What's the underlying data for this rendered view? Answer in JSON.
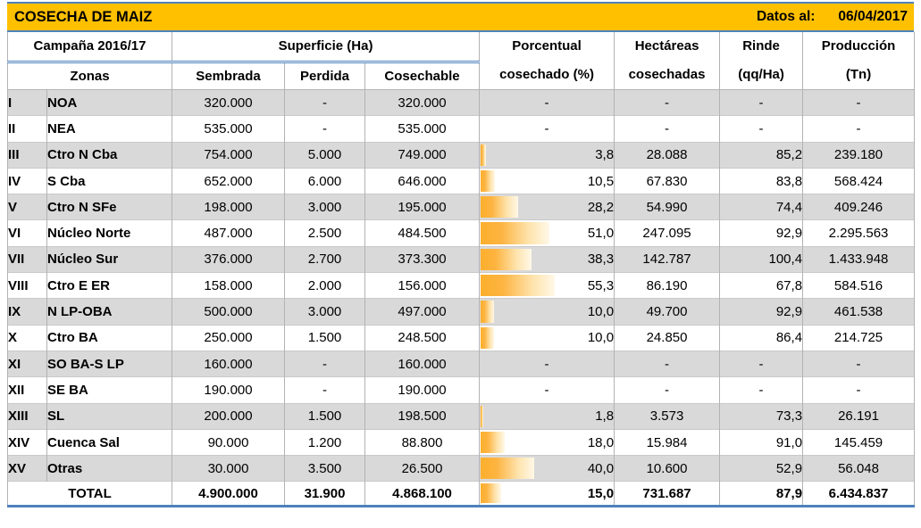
{
  "chart_data": {
    "type": "table",
    "title": "COSECHA DE MAIZ",
    "as_of_label": "Datos al:",
    "as_of_date": "06/04/2017",
    "header_groups": {
      "campania": "Campaña 2016/17",
      "superficie": "Superficie (Ha)"
    },
    "columns": {
      "zonas": "Zonas",
      "sembrada": "Sembrada",
      "perdida": "Perdida",
      "cosechable": "Cosechable",
      "porcentual_l1": "Porcentual",
      "porcentual_l2": "cosechado (%)",
      "hectareas_l1": "Hectáreas",
      "hectareas_l2": "cosechadas",
      "rinde_l1": "Rinde",
      "rinde_l2": "(qq/Ha)",
      "produccion_l1": "Producción",
      "produccion_l2": "(Tn)"
    },
    "databar": {
      "min": 0,
      "max": 100
    },
    "rows": [
      {
        "id": "I",
        "zone": "NOA",
        "sembrada": "320.000",
        "perdida": "-",
        "cosechable": "320.000",
        "pct": null,
        "pct_text": "-",
        "hectareas": "-",
        "rinde": "-",
        "produccion": "-"
      },
      {
        "id": "II",
        "zone": "NEA",
        "sembrada": "535.000",
        "perdida": "-",
        "cosechable": "535.000",
        "pct": null,
        "pct_text": "-",
        "hectareas": "-",
        "rinde": "-",
        "produccion": "-"
      },
      {
        "id": "III",
        "zone": "Ctro N Cba",
        "sembrada": "754.000",
        "perdida": "5.000",
        "cosechable": "749.000",
        "pct": 3.8,
        "pct_text": "3,8",
        "hectareas": "28.088",
        "rinde": "85,2",
        "produccion": "239.180"
      },
      {
        "id": "IV",
        "zone": "S Cba",
        "sembrada": "652.000",
        "perdida": "6.000",
        "cosechable": "646.000",
        "pct": 10.5,
        "pct_text": "10,5",
        "hectareas": "67.830",
        "rinde": "83,8",
        "produccion": "568.424"
      },
      {
        "id": "V",
        "zone": "Ctro N SFe",
        "sembrada": "198.000",
        "perdida": "3.000",
        "cosechable": "195.000",
        "pct": 28.2,
        "pct_text": "28,2",
        "hectareas": "54.990",
        "rinde": "74,4",
        "produccion": "409.246"
      },
      {
        "id": "VI",
        "zone": "Núcleo Norte",
        "sembrada": "487.000",
        "perdida": "2.500",
        "cosechable": "484.500",
        "pct": 51.0,
        "pct_text": "51,0",
        "hectareas": "247.095",
        "rinde": "92,9",
        "produccion": "2.295.563"
      },
      {
        "id": "VII",
        "zone": "Núcleo Sur",
        "sembrada": "376.000",
        "perdida": "2.700",
        "cosechable": "373.300",
        "pct": 38.3,
        "pct_text": "38,3",
        "hectareas": "142.787",
        "rinde": "100,4",
        "produccion": "1.433.948"
      },
      {
        "id": "VIII",
        "zone": "Ctro E ER",
        "sembrada": "158.000",
        "perdida": "2.000",
        "cosechable": "156.000",
        "pct": 55.3,
        "pct_text": "55,3",
        "hectareas": "86.190",
        "rinde": "67,8",
        "produccion": "584.516"
      },
      {
        "id": "IX",
        "zone": "N LP-OBA",
        "sembrada": "500.000",
        "perdida": "3.000",
        "cosechable": "497.000",
        "pct": 10.0,
        "pct_text": "10,0",
        "hectareas": "49.700",
        "rinde": "92,9",
        "produccion": "461.538"
      },
      {
        "id": "X",
        "zone": "Ctro BA",
        "sembrada": "250.000",
        "perdida": "1.500",
        "cosechable": "248.500",
        "pct": 10.0,
        "pct_text": "10,0",
        "hectareas": "24.850",
        "rinde": "86,4",
        "produccion": "214.725"
      },
      {
        "id": "XI",
        "zone": "SO BA-S LP",
        "sembrada": "160.000",
        "perdida": "-",
        "cosechable": "160.000",
        "pct": null,
        "pct_text": "-",
        "hectareas": "-",
        "rinde": "-",
        "produccion": "-"
      },
      {
        "id": "XII",
        "zone": "SE BA",
        "sembrada": "190.000",
        "perdida": "-",
        "cosechable": "190.000",
        "pct": null,
        "pct_text": "-",
        "hectareas": "-",
        "rinde": "-",
        "produccion": "-"
      },
      {
        "id": "XIII",
        "zone": "SL",
        "sembrada": "200.000",
        "perdida": "1.500",
        "cosechable": "198.500",
        "pct": 1.8,
        "pct_text": "1,8",
        "hectareas": "3.573",
        "rinde": "73,3",
        "produccion": "26.191"
      },
      {
        "id": "XIV",
        "zone": "Cuenca Sal",
        "sembrada": "90.000",
        "perdida": "1.200",
        "cosechable": "88.800",
        "pct": 18.0,
        "pct_text": "18,0",
        "hectareas": "15.984",
        "rinde": "91,0",
        "produccion": "145.459"
      },
      {
        "id": "XV",
        "zone": "Otras",
        "sembrada": "30.000",
        "perdida": "3.500",
        "cosechable": "26.500",
        "pct": 40.0,
        "pct_text": "40,0",
        "hectareas": "10.600",
        "rinde": "52,9",
        "produccion": "56.048"
      }
    ],
    "total": {
      "label": "TOTAL",
      "sembrada": "4.900.000",
      "perdida": "31.900",
      "cosechable": "4.868.100",
      "pct": 15.0,
      "pct_text": "15,0",
      "hectareas": "731.687",
      "rinde": "87,9",
      "produccion": "6.434.837"
    }
  },
  "colors": {
    "banner_bg": "#FFC000",
    "accent_blue": "#4E81BD",
    "row_shade": "#D9D9D9",
    "grid_line": "#B3B3B3",
    "bar_start": "#FCAF2C",
    "bar_end": "#FFF8E8",
    "text": "#000000"
  }
}
